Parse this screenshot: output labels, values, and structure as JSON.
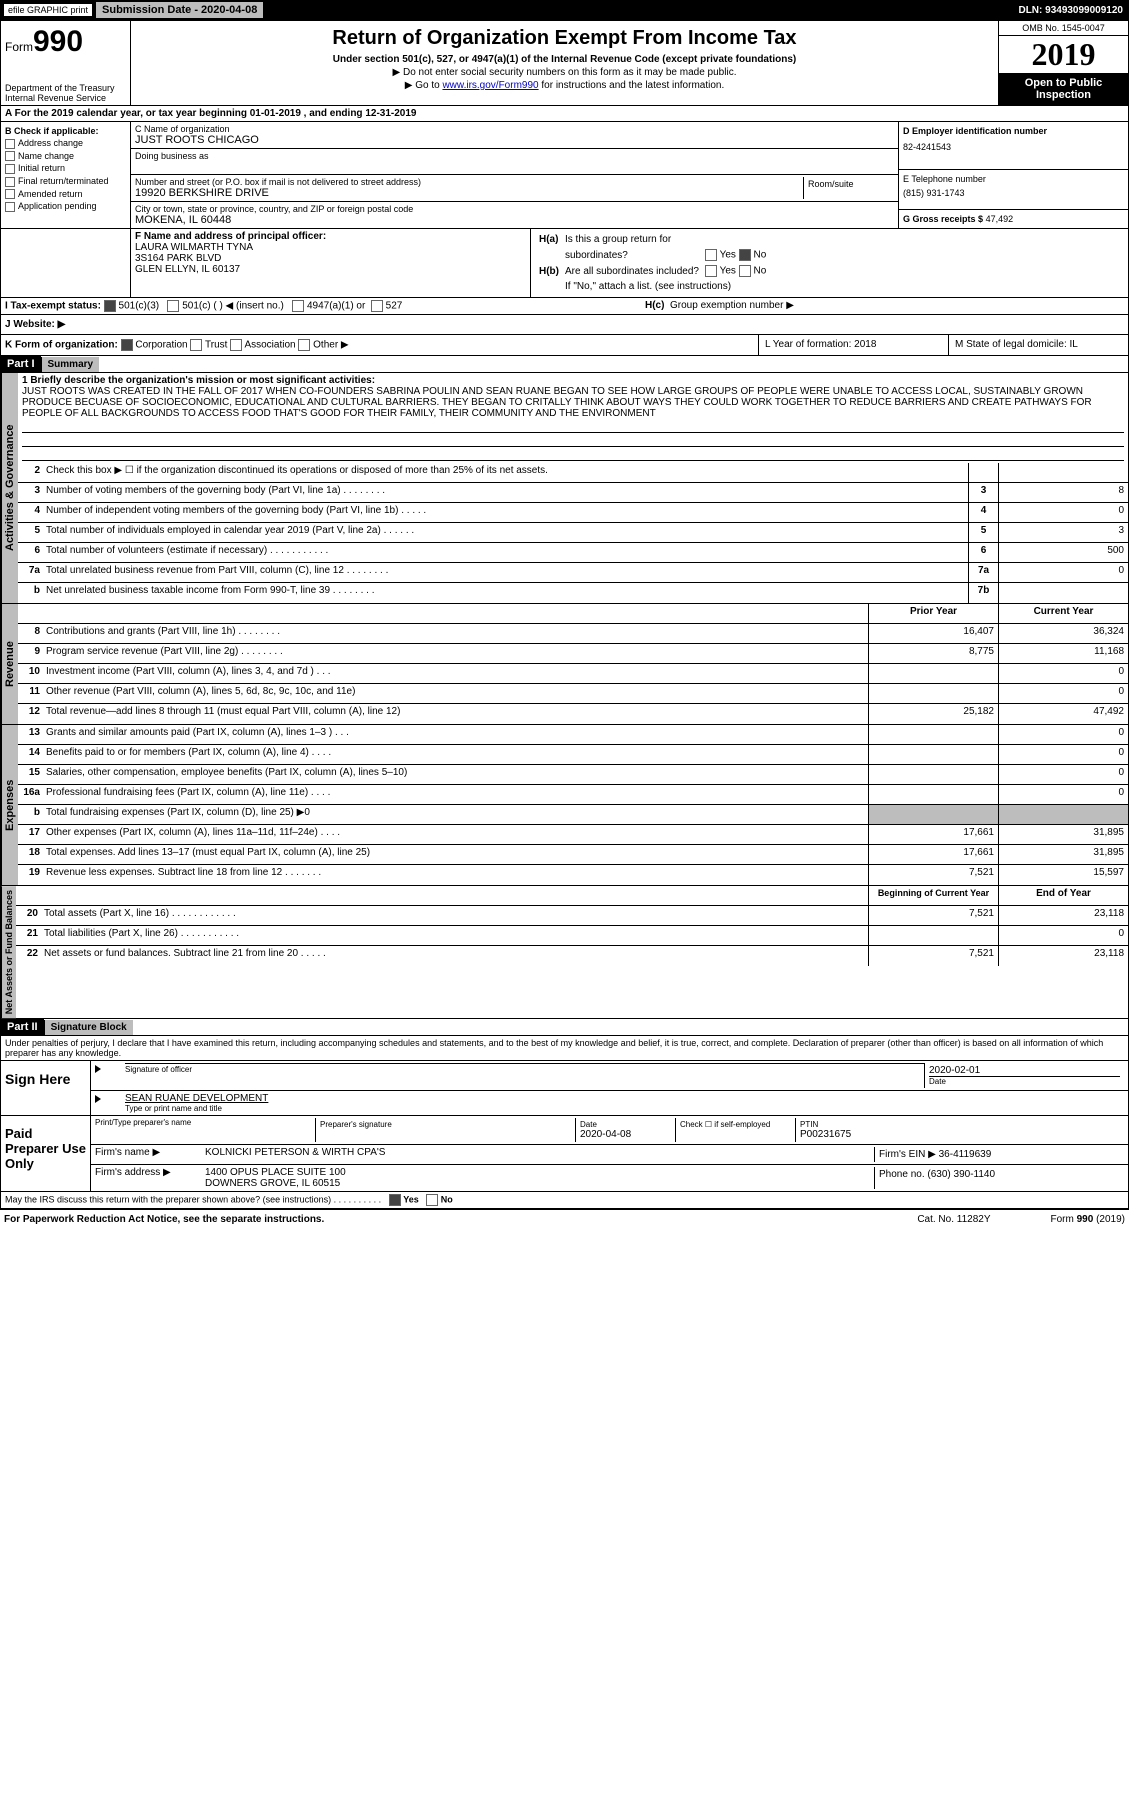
{
  "topbar": {
    "efile": "efile GRAPHIC print",
    "submission": "Submission Date - 2020-04-08",
    "dln": "DLN: 93493099009120"
  },
  "header": {
    "form_label": "Form",
    "form_num": "990",
    "dept": "Department of the Treasury\nInternal Revenue Service",
    "title": "Return of Organization Exempt From Income Tax",
    "sub1": "Under section 501(c), 527, or 4947(a)(1) of the Internal Revenue Code (except private foundations)",
    "sub2a": "▶ Do not enter social security numbers on this form as it may be made public.",
    "sub2b": "▶ Go to www.irs.gov/Form990 for instructions and the latest information.",
    "omb": "OMB No. 1545-0047",
    "year": "2019",
    "open": "Open to Public Inspection"
  },
  "rowA": "A  For the 2019 calendar year, or tax year beginning 01-01-2019        , and ending 12-31-2019",
  "boxB": {
    "label": "B Check if applicable:",
    "items": [
      "Address change",
      "Name change",
      "Initial return",
      "Final return/terminated",
      "Amended return",
      "Application pending"
    ]
  },
  "boxC": {
    "name_lbl": "C Name of organization",
    "name": "JUST ROOTS CHICAGO",
    "dba_lbl": "Doing business as",
    "dba": "",
    "addr_lbl": "Number and street (or P.O. box if mail is not delivered to street address)",
    "room_lbl": "Room/suite",
    "addr": "19920 BERKSHIRE DRIVE",
    "city_lbl": "City or town, state or province, country, and ZIP or foreign postal code",
    "city": "MOKENA, IL  60448"
  },
  "boxD": {
    "lbl": "D Employer identification number",
    "val": "82-4241543"
  },
  "boxE": {
    "lbl": "E Telephone number",
    "val": "(815) 931-1743"
  },
  "boxG": {
    "lbl": "G Gross receipts $",
    "val": "47,492"
  },
  "boxF": {
    "lbl": "F  Name and address of principal officer:",
    "name": "LAURA WILMARTH TYNA",
    "addr1": "3S164 PARK BLVD",
    "addr2": "GLEN ELLYN, IL  60137"
  },
  "boxH": {
    "a_lbl": "H(a)",
    "a_txt": "Is this a group return for",
    "a_txt2": "subordinates?",
    "a_yes": "Yes",
    "a_no": "No",
    "b_lbl": "H(b)",
    "b_txt": "Are all subordinates included?",
    "b_yes": "Yes",
    "b_no": "No",
    "b_note": "If \"No,\" attach a list. (see instructions)",
    "c_lbl": "H(c)",
    "c_txt": "Group exemption number ▶"
  },
  "boxI": {
    "lbl": "I   Tax-exempt status:",
    "opts": [
      "501(c)(3)",
      "501(c) (  ) ◀ (insert no.)",
      "4947(a)(1) or",
      "527"
    ]
  },
  "boxJ": {
    "lbl": "J   Website: ▶",
    "val": ""
  },
  "boxK": {
    "lbl": "K Form of organization:",
    "opts": [
      "Corporation",
      "Trust",
      "Association",
      "Other ▶"
    ],
    "L": "L Year of formation: 2018",
    "M": "M State of legal domicile: IL"
  },
  "part1": {
    "hdr": "Part I",
    "title": "Summary",
    "side1": "Activities & Governance",
    "mission_lbl": "1   Briefly describe the organization's mission or most significant activities:",
    "mission": "JUST ROOTS WAS CREATED IN THE FALL OF 2017 WHEN CO-FOUNDERS SABRINA POULIN AND SEAN RUANE BEGAN TO SEE HOW LARGE GROUPS OF PEOPLE WERE UNABLE TO ACCESS LOCAL, SUSTAINABLY GROWN PRODUCE BECUASE OF SOCIOECONOMIC, EDUCATIONAL AND CULTURAL BARRIERS. THEY BEGAN TO CRITALLY THINK ABOUT WAYS THEY COULD WORK TOGETHER TO REDUCE BARRIERS AND CREATE PATHWAYS FOR PEOPLE OF ALL BACKGROUNDS TO ACCESS FOOD THAT'S GOOD FOR THEIR FAMILY, THEIR COMMUNITY AND THE ENVIRONMENT",
    "rows": [
      {
        "n": "2",
        "d": "Check this box ▶ ☐ if the organization discontinued its operations or disposed of more than 25% of its net assets.",
        "nb": "",
        "v": ""
      },
      {
        "n": "3",
        "d": "Number of voting members of the governing body (Part VI, line 1a)   .     .     .     .     .     .     .     .",
        "nb": "3",
        "v": "8"
      },
      {
        "n": "4",
        "d": "Number of independent voting members of the governing body (Part VI, line 1b)   .     .     .     .     .",
        "nb": "4",
        "v": "0"
      },
      {
        "n": "5",
        "d": "Total number of individuals employed in calendar year 2019 (Part V, line 2a)   .     .     .     .     .     .",
        "nb": "5",
        "v": "3"
      },
      {
        "n": "6",
        "d": "Total number of volunteers (estimate if necessary)   .     .     .     .     .     .     .     .     .     .     .",
        "nb": "6",
        "v": "500"
      },
      {
        "n": "7a",
        "d": "Total unrelated business revenue from Part VIII, column (C), line 12   .     .     .     .     .     .     .     .",
        "nb": "7a",
        "v": "0"
      },
      {
        "n": "b",
        "d": "Net unrelated business taxable income from Form 990-T, line 39   .     .     .     .     .     .     .     .",
        "nb": "7b",
        "v": ""
      }
    ],
    "side2": "Revenue",
    "side3": "Expenses",
    "side4": "Net Assets or Fund Balances",
    "col_prior": "Prior Year",
    "col_curr": "Current Year",
    "rev_rows": [
      {
        "n": "8",
        "d": "Contributions and grants (Part VIII, line 1h)   .     .     .     .     .     .     .     .",
        "p": "16,407",
        "c": "36,324"
      },
      {
        "n": "9",
        "d": "Program service revenue (Part VIII, line 2g)   .     .     .     .     .     .     .     .",
        "p": "8,775",
        "c": "11,168"
      },
      {
        "n": "10",
        "d": "Investment income (Part VIII, column (A), lines 3, 4, and 7d )   .     .     .",
        "p": "",
        "c": "0"
      },
      {
        "n": "11",
        "d": "Other revenue (Part VIII, column (A), lines 5, 6d, 8c, 9c, 10c, and 11e)",
        "p": "",
        "c": "0"
      },
      {
        "n": "12",
        "d": "Total revenue—add lines 8 through 11 (must equal Part VIII, column (A), line 12)",
        "p": "25,182",
        "c": "47,492"
      }
    ],
    "exp_rows": [
      {
        "n": "13",
        "d": "Grants and similar amounts paid (Part IX, column (A), lines 1–3 )   .     .     .",
        "p": "",
        "c": "0"
      },
      {
        "n": "14",
        "d": "Benefits paid to or for members (Part IX, column (A), line 4)   .     .     .     .",
        "p": "",
        "c": "0"
      },
      {
        "n": "15",
        "d": "Salaries, other compensation, employee benefits (Part IX, column (A), lines 5–10)",
        "p": "",
        "c": "0"
      },
      {
        "n": "16a",
        "d": "Professional fundraising fees (Part IX, column (A), line 11e)   .     .     .     .",
        "p": "",
        "c": "0"
      },
      {
        "n": "b",
        "d": "Total fundraising expenses (Part IX, column (D), line 25) ▶0",
        "p": "grey",
        "c": "grey"
      },
      {
        "n": "17",
        "d": "Other expenses (Part IX, column (A), lines 11a–11d, 11f–24e)   .     .     .     .",
        "p": "17,661",
        "c": "31,895"
      },
      {
        "n": "18",
        "d": "Total expenses. Add lines 13–17 (must equal Part IX, column (A), line 25)",
        "p": "17,661",
        "c": "31,895"
      },
      {
        "n": "19",
        "d": "Revenue less expenses. Subtract line 18 from line 12   .     .     .     .     .     .     .",
        "p": "7,521",
        "c": "15,597"
      }
    ],
    "col_beg": "Beginning of Current Year",
    "col_end": "End of Year",
    "net_rows": [
      {
        "n": "20",
        "d": "Total assets (Part X, line 16)   .     .     .     .     .     .     .     .     .     .     .     .",
        "p": "7,521",
        "c": "23,118"
      },
      {
        "n": "21",
        "d": "Total liabilities (Part X, line 26)   .     .     .     .     .     .     .     .     .     .     .",
        "p": "",
        "c": "0"
      },
      {
        "n": "22",
        "d": "Net assets or fund balances. Subtract line 21 from line 20   .     .     .     .     .",
        "p": "7,521",
        "c": "23,118"
      }
    ]
  },
  "part2": {
    "hdr": "Part II",
    "title": "Signature Block",
    "perjury": "Under penalties of perjury, I declare that I have examined this return, including accompanying schedules and statements, and to the best of my knowledge and belief, it is true, correct, and complete. Declaration of preparer (other than officer) is based on all information of which preparer has any knowledge.",
    "sign_here": "Sign Here",
    "sig_officer": "Signature of officer",
    "sig_date": "2020-02-01",
    "date_lbl": "Date",
    "officer_name": "SEAN RUANE  DEVELOPMENT",
    "type_lbl": "Type or print name and title",
    "paid": "Paid Preparer Use Only",
    "prep_name_lbl": "Print/Type preparer's name",
    "prep_sig_lbl": "Preparer's signature",
    "prep_date_lbl": "Date",
    "prep_date": "2020-04-08",
    "check_lbl": "Check ☐ if self-employed",
    "ptin_lbl": "PTIN",
    "ptin": "P00231675",
    "firm_lbl": "Firm's name    ▶",
    "firm": "KOLNICKI PETERSON & WIRTH CPA'S",
    "ein_lbl": "Firm's EIN ▶",
    "ein": "36-4119639",
    "firm_addr_lbl": "Firm's address ▶",
    "firm_addr1": "1400 OPUS PLACE SUITE 100",
    "firm_addr2": "DOWNERS GROVE, IL  60515",
    "phone_lbl": "Phone no.",
    "phone": "(630) 390-1140",
    "discuss": "May the IRS discuss this return with the preparer shown above? (see instructions)   .     .     .     .     .     .     .     .     .     .",
    "yes": "Yes",
    "no": "No"
  },
  "footer": {
    "left": "For Paperwork Reduction Act Notice, see the separate instructions.",
    "mid": "Cat. No. 11282Y",
    "right": "Form 990 (2019)"
  },
  "colors": {
    "black": "#000000",
    "grey": "#bdbdbd",
    "link": "#0000cc"
  }
}
